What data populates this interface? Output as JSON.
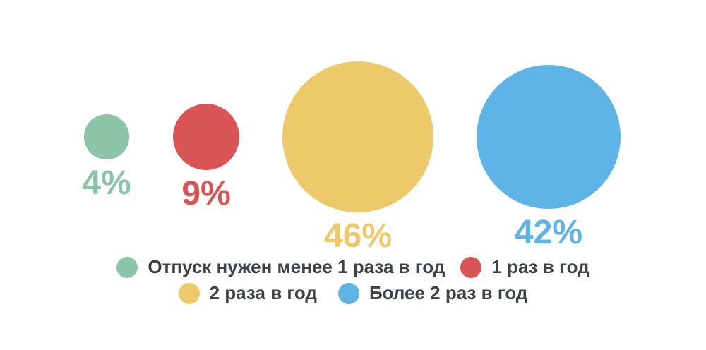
{
  "background_color": "#FFFFFF",
  "chart_data": {
    "type": "bubble",
    "title": "",
    "sizing": "area-proportional",
    "series": [
      {
        "name": "Отпуск нужен менее 1 раза в год",
        "value": 4,
        "value_label": "4%",
        "color": "#8CC4A7"
      },
      {
        "name": "1 раз в год",
        "value": 9,
        "value_label": "9%",
        "color": "#D95455"
      },
      {
        "name": "2 раза в год",
        "value": 46,
        "value_label": "46%",
        "color": "#EDCA69"
      },
      {
        "name": "Более 2 раз в год",
        "value": 42,
        "value_label": "42%",
        "color": "#5EB4E6"
      }
    ],
    "legend_position": "bottom",
    "legend_rows": [
      [
        0,
        1
      ],
      [
        2,
        3
      ]
    ],
    "legend_text_color": "#3C4245"
  }
}
